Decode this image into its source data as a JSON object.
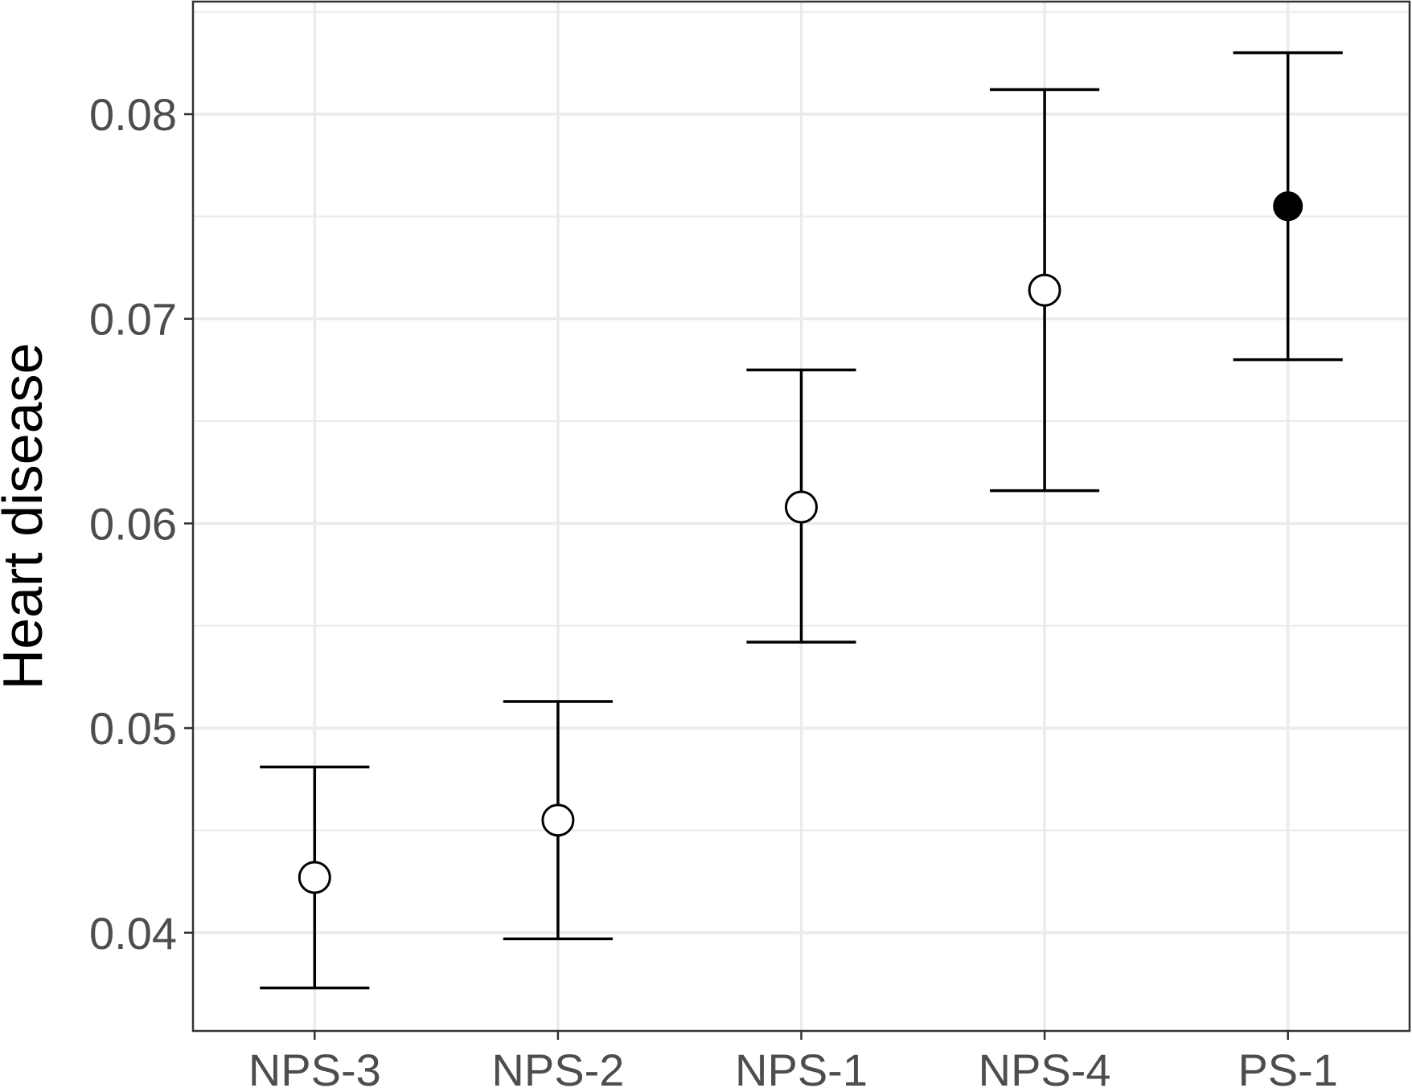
{
  "chart_data": {
    "type": "scatter",
    "subtype": "point-with-errorbars",
    "title": "",
    "xlabel": "",
    "ylabel": "Heart disease",
    "categories": [
      "NPS-3",
      "NPS-2",
      "NPS-1",
      "NPS-4",
      "PS-1"
    ],
    "estimates": [
      0.0427,
      0.0455,
      0.0608,
      0.0714,
      0.0755
    ],
    "lower": [
      0.0373,
      0.0397,
      0.0542,
      0.0616,
      0.068
    ],
    "upper": [
      0.0481,
      0.0513,
      0.0675,
      0.0812,
      0.083
    ],
    "marker_filled": [
      false,
      false,
      false,
      false,
      true
    ],
    "ylim": [
      0.0352,
      0.0855
    ],
    "yticks": [
      0.04,
      0.05,
      0.06,
      0.07,
      0.08
    ],
    "ytick_labels": [
      "0.04",
      "0.05",
      "0.06",
      "0.07",
      "0.08"
    ],
    "grid": true,
    "colors": {
      "marks": "#000000",
      "grid": "#ebebeb",
      "tick_text": "#4d4d4d",
      "border": "#333333"
    }
  }
}
